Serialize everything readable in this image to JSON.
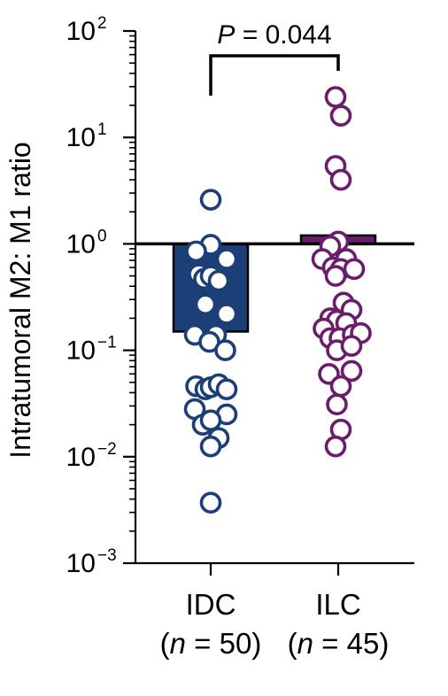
{
  "chart_data": {
    "type": "bar",
    "ylabel": "Intratumoral M2: M1 ratio",
    "yscale": "log",
    "ylim": [
      0.001,
      100
    ],
    "yticks": [
      {
        "base": "10",
        "exp": "2",
        "value": 100
      },
      {
        "base": "10",
        "exp": "1",
        "value": 10
      },
      {
        "base": "10",
        "exp": "0",
        "value": 1
      },
      {
        "base": "10",
        "exp": "−1",
        "value": 0.1
      },
      {
        "base": "10",
        "exp": "−2",
        "value": 0.01
      },
      {
        "base": "10",
        "exp": "−3",
        "value": 0.001
      }
    ],
    "reference_line": 1,
    "categories": [
      {
        "name": "IDC",
        "n_prefix": "(",
        "n_var": "n",
        "n_text": " = 50)"
      },
      {
        "name": "ILC",
        "n_prefix": "(",
        "n_var": "n",
        "n_text": " = 45)"
      }
    ],
    "series": [
      {
        "category": "IDC",
        "color": "#1d3f77",
        "bar_from": 0.15,
        "bar_to": 1.0,
        "points": [
          {
            "dx": 0.0,
            "y": 2.6
          },
          {
            "dx": 0.0,
            "y": 0.98
          },
          {
            "dx": -0.55,
            "y": 0.85
          },
          {
            "dx": 0.6,
            "y": 0.72
          },
          {
            "dx": -0.45,
            "y": 0.52
          },
          {
            "dx": -0.25,
            "y": 0.47
          },
          {
            "dx": 0.0,
            "y": 0.5
          },
          {
            "dx": 0.3,
            "y": 0.45
          },
          {
            "dx": -0.2,
            "y": 0.27
          },
          {
            "dx": 0.6,
            "y": 0.22
          },
          {
            "dx": -0.6,
            "y": 0.14
          },
          {
            "dx": 0.2,
            "y": 0.14
          },
          {
            "dx": -0.05,
            "y": 0.12
          },
          {
            "dx": 0.55,
            "y": 0.1
          },
          {
            "dx": -0.55,
            "y": 0.046
          },
          {
            "dx": -0.2,
            "y": 0.043
          },
          {
            "dx": 0.0,
            "y": 0.045
          },
          {
            "dx": 0.3,
            "y": 0.048
          },
          {
            "dx": 0.6,
            "y": 0.043
          },
          {
            "dx": -0.6,
            "y": 0.028
          },
          {
            "dx": 0.6,
            "y": 0.025
          },
          {
            "dx": -0.3,
            "y": 0.02
          },
          {
            "dx": 0.0,
            "y": 0.022
          },
          {
            "dx": 0.3,
            "y": 0.015
          },
          {
            "dx": 0.0,
            "y": 0.0125
          },
          {
            "dx": 0.0,
            "y": 0.0037
          }
        ]
      },
      {
        "category": "ILC",
        "color": "#6b1d6b",
        "bar_from": 1.0,
        "bar_to": 1.2,
        "points": [
          {
            "dx": -0.1,
            "y": 24
          },
          {
            "dx": 0.1,
            "y": 16
          },
          {
            "dx": -0.1,
            "y": 5.4
          },
          {
            "dx": 0.1,
            "y": 4.0
          },
          {
            "dx": 0.0,
            "y": 1.05
          },
          {
            "dx": -0.3,
            "y": 0.95
          },
          {
            "dx": -0.6,
            "y": 0.72
          },
          {
            "dx": 0.3,
            "y": 0.72
          },
          {
            "dx": -0.2,
            "y": 0.6
          },
          {
            "dx": 0.1,
            "y": 0.58
          },
          {
            "dx": 0.6,
            "y": 0.58
          },
          {
            "dx": -0.1,
            "y": 0.5
          },
          {
            "dx": 0.2,
            "y": 0.28
          },
          {
            "dx": 0.5,
            "y": 0.24
          },
          {
            "dx": -0.3,
            "y": 0.2
          },
          {
            "dx": -0.05,
            "y": 0.19
          },
          {
            "dx": 0.3,
            "y": 0.18
          },
          {
            "dx": -0.55,
            "y": 0.16
          },
          {
            "dx": -0.3,
            "y": 0.13
          },
          {
            "dx": 0.05,
            "y": 0.13
          },
          {
            "dx": 0.55,
            "y": 0.14
          },
          {
            "dx": 0.85,
            "y": 0.145
          },
          {
            "dx": -0.05,
            "y": 0.1
          },
          {
            "dx": 0.5,
            "y": 0.11
          },
          {
            "dx": -0.35,
            "y": 0.06
          },
          {
            "dx": 0.5,
            "y": 0.064
          },
          {
            "dx": 0.1,
            "y": 0.046
          },
          {
            "dx": -0.05,
            "y": 0.031
          },
          {
            "dx": 0.1,
            "y": 0.018
          },
          {
            "dx": -0.1,
            "y": 0.0125
          }
        ]
      }
    ],
    "annotations": [
      {
        "type": "significance_bracket",
        "between": [
          "IDC",
          "ILC"
        ],
        "p_var": "P",
        "p_text": " = 0.044"
      }
    ]
  }
}
